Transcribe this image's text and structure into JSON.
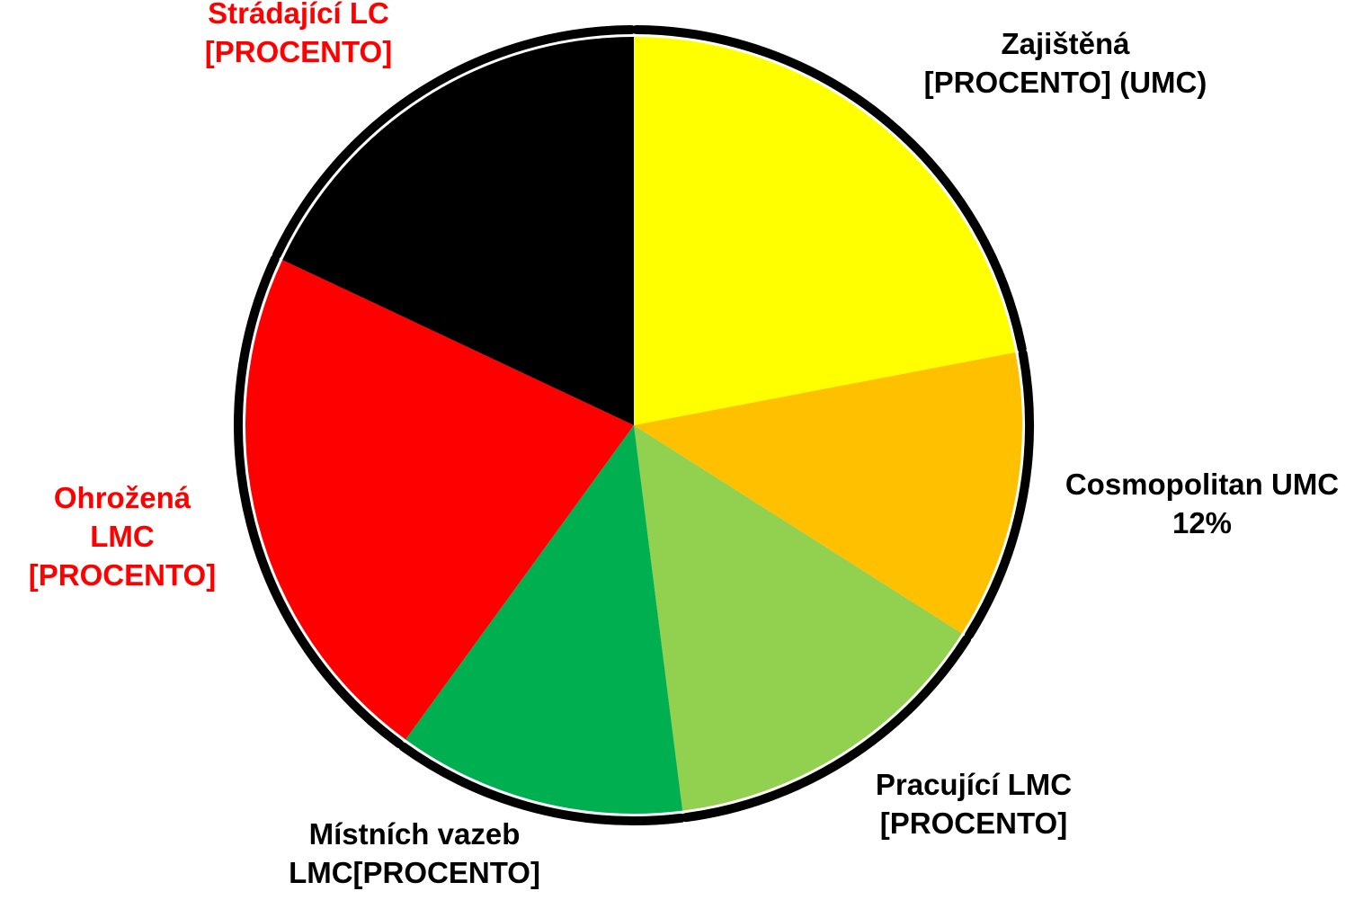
{
  "chart_data": {
    "type": "pie",
    "categories": [
      "Zajištěná\n[PROCENTO] (UMC)",
      "Cosmopolitan UMC\n12%",
      "Pracující LMC\n[PROCENTO]",
      "Místních vazeb\nLMC[PROCENTO]",
      "Ohrožená\nLMC\n[PROCENTO]",
      "Strádající LC\n[PROCENTO]"
    ],
    "values": [
      22,
      12,
      14,
      12,
      22,
      18
    ],
    "colors": [
      "#ffff00",
      "#ffc000",
      "#92d050",
      "#00b050",
      "#ff0000",
      "#000000"
    ],
    "label_colors": [
      "#000000",
      "#000000",
      "#000000",
      "#000000",
      "#ff0000",
      "#ff0000"
    ]
  }
}
